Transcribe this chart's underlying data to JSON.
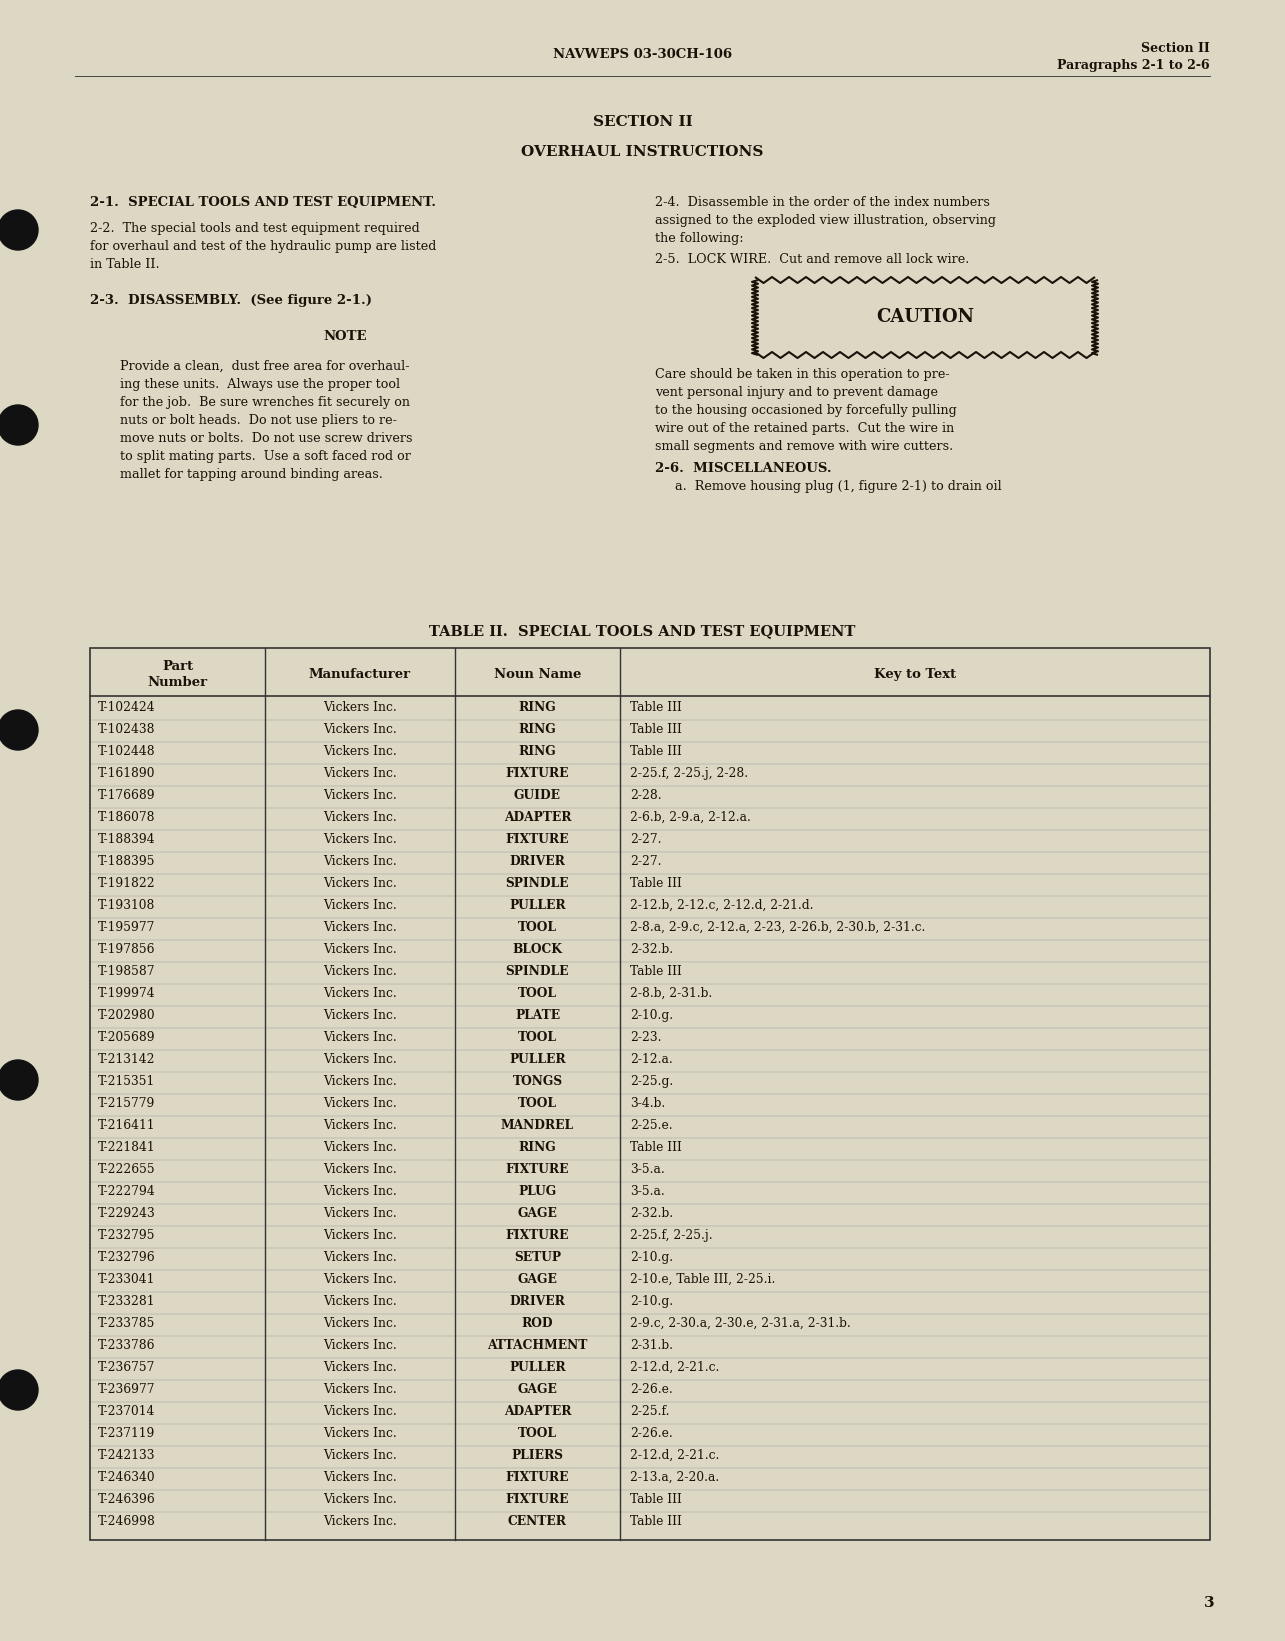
{
  "bg_color": "#ddd8c4",
  "header_center": "NAVWEPS 03-30CH-106",
  "header_right_line1": "Section II",
  "header_right_line2": "Paragraphs 2-1 to 2-6",
  "section_title": "SECTION II",
  "section_subtitle": "OVERHAUL INSTRUCTIONS",
  "table_title": "TABLE II.  SPECIAL TOOLS AND TEST EQUIPMENT",
  "table_headers": [
    "Part\nNumber",
    "Manufacturer",
    "Noun Name",
    "Key to Text"
  ],
  "table_rows": [
    [
      "T-102424",
      "Vickers Inc.",
      "RING",
      "Table III"
    ],
    [
      "T-102438",
      "Vickers Inc.",
      "RING",
      "Table III"
    ],
    [
      "T-102448",
      "Vickers Inc.",
      "RING",
      "Table III"
    ],
    [
      "T-161890",
      "Vickers Inc.",
      "FIXTURE",
      "2-25.f, 2-25.j, 2-28."
    ],
    [
      "T-176689",
      "Vickers Inc.",
      "GUIDE",
      "2-28."
    ],
    [
      "T-186078",
      "Vickers Inc.",
      "ADAPTER",
      "2-6.b, 2-9.a, 2-12.a."
    ],
    [
      "T-188394",
      "Vickers Inc.",
      "FIXTURE",
      "2-27."
    ],
    [
      "T-188395",
      "Vickers Inc.",
      "DRIVER",
      "2-27."
    ],
    [
      "T-191822",
      "Vickers Inc.",
      "SPINDLE",
      "Table III"
    ],
    [
      "T-193108",
      "Vickers Inc.",
      "PULLER",
      "2-12.b, 2-12.c, 2-12.d, 2-21.d."
    ],
    [
      "T-195977",
      "Vickers Inc.",
      "TOOL",
      "2-8.a, 2-9.c, 2-12.a, 2-23, 2-26.b, 2-30.b, 2-31.c."
    ],
    [
      "T-197856",
      "Vickers Inc.",
      "BLOCK",
      "2-32.b."
    ],
    [
      "T-198587",
      "Vickers Inc.",
      "SPINDLE",
      "Table III"
    ],
    [
      "T-199974",
      "Vickers Inc.",
      "TOOL",
      "2-8.b, 2-31.b."
    ],
    [
      "T-202980",
      "Vickers Inc.",
      "PLATE",
      "2-10.g."
    ],
    [
      "T-205689",
      "Vickers Inc.",
      "TOOL",
      "2-23."
    ],
    [
      "T-213142",
      "Vickers Inc.",
      "PULLER",
      "2-12.a."
    ],
    [
      "T-215351",
      "Vickers Inc.",
      "TONGS",
      "2-25.g."
    ],
    [
      "T-215779",
      "Vickers Inc.",
      "TOOL",
      "3-4.b."
    ],
    [
      "T-216411",
      "Vickers Inc.",
      "MANDREL",
      "2-25.e."
    ],
    [
      "T-221841",
      "Vickers Inc.",
      "RING",
      "Table III"
    ],
    [
      "T-222655",
      "Vickers Inc.",
      "FIXTURE",
      "3-5.a."
    ],
    [
      "T-222794",
      "Vickers Inc.",
      "PLUG",
      "3-5.a."
    ],
    [
      "T-229243",
      "Vickers Inc.",
      "GAGE",
      "2-32.b."
    ],
    [
      "T-232795",
      "Vickers Inc.",
      "FIXTURE",
      "2-25.f, 2-25.j."
    ],
    [
      "T-232796",
      "Vickers Inc.",
      "SETUP",
      "2-10.g."
    ],
    [
      "T-233041",
      "Vickers Inc.",
      "GAGE",
      "2-10.e, Table III, 2-25.i."
    ],
    [
      "T-233281",
      "Vickers Inc.",
      "DRIVER",
      "2-10.g."
    ],
    [
      "T-233785",
      "Vickers Inc.",
      "ROD",
      "2-9.c, 2-30.a, 2-30.e, 2-31.a, 2-31.b."
    ],
    [
      "T-233786",
      "Vickers Inc.",
      "ATTACHMENT",
      "2-31.b."
    ],
    [
      "T-236757",
      "Vickers Inc.",
      "PULLER",
      "2-12.d, 2-21.c."
    ],
    [
      "T-236977",
      "Vickers Inc.",
      "GAGE",
      "2-26.e."
    ],
    [
      "T-237014",
      "Vickers Inc.",
      "ADAPTER",
      "2-25.f."
    ],
    [
      "T-237119",
      "Vickers Inc.",
      "TOOL",
      "2-26.e."
    ],
    [
      "T-242133",
      "Vickers Inc.",
      "PLIERS",
      "2-12.d, 2-21.c."
    ],
    [
      "T-246340",
      "Vickers Inc.",
      "FIXTURE",
      "2-13.a, 2-20.a."
    ],
    [
      "T-246396",
      "Vickers Inc.",
      "FIXTURE",
      "Table III"
    ],
    [
      "T-246998",
      "Vickers Inc.",
      "CENTER",
      "Table III"
    ]
  ],
  "page_number": "3",
  "hole_positions_y": [
    230,
    425,
    730,
    1080,
    1390
  ]
}
